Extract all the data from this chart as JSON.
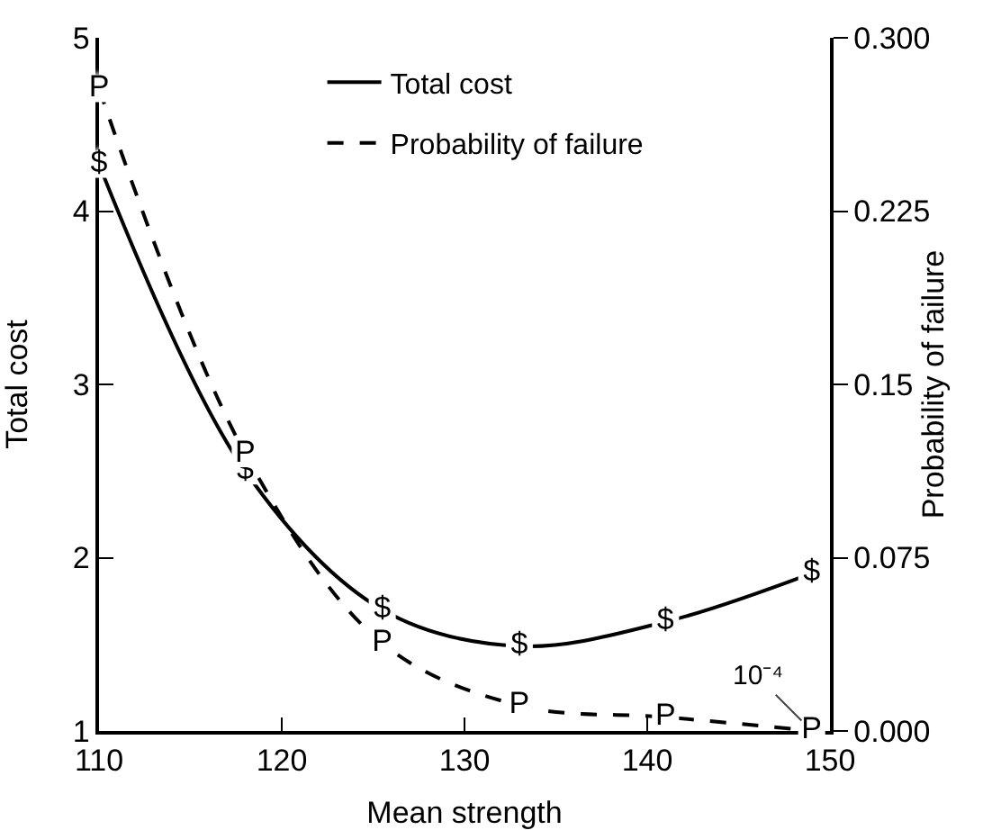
{
  "chart_data": {
    "type": "line",
    "xlabel": "Mean strength",
    "ylabel": "Total cost",
    "y2label": "Probability of failure",
    "x": [
      110,
      118,
      125.5,
      133,
      141,
      149
    ],
    "series": [
      {
        "name": "Total cost",
        "color": "#000000",
        "values": [
          4.27,
          2.5,
          1.7,
          1.49,
          1.63,
          1.91
        ],
        "value_labels": [
          "$",
          "$",
          "$",
          "$",
          "$",
          "$"
        ],
        "line_style": "solid",
        "marker": "square"
      },
      {
        "name": "Probability of failure",
        "color": "#000000",
        "axis": "y2",
        "values": [
          0.278,
          0.12,
          0.038,
          0.011,
          0.006,
          0.0001
        ],
        "value_labels": [
          "P",
          "P",
          "P",
          "P",
          "P",
          "P"
        ],
        "line_style": "dashed",
        "marker": "square"
      }
    ],
    "xlim": [
      110,
      150
    ],
    "xticks": [
      110,
      120,
      130,
      140,
      150
    ],
    "ylim": [
      1,
      5
    ],
    "yticks": [
      1,
      2,
      3,
      4,
      5
    ],
    "y2lim": [
      0,
      0.3
    ],
    "y2ticks": [
      {
        "value": 0,
        "label": "0.000"
      },
      0.075,
      0.15,
      0.225,
      {
        "value": 0.3,
        "label": "0.300"
      }
    ],
    "annotations": [
      "10⁻⁴"
    ],
    "grid": false,
    "legend": "top"
  }
}
